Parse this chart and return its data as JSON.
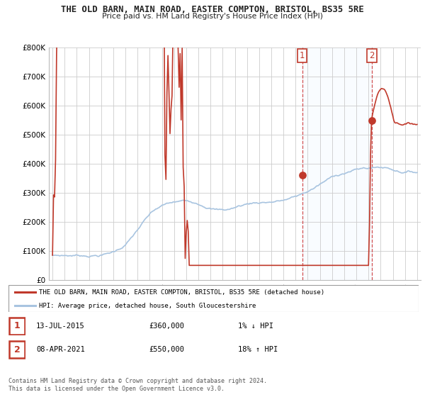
{
  "title": "THE OLD BARN, MAIN ROAD, EASTER COMPTON, BRISTOL, BS35 5RE",
  "subtitle": "Price paid vs. HM Land Registry's House Price Index (HPI)",
  "ylim": [
    0,
    800000
  ],
  "yticks": [
    0,
    100000,
    200000,
    300000,
    400000,
    500000,
    600000,
    700000,
    800000
  ],
  "ytick_labels": [
    "£0",
    "£100K",
    "£200K",
    "£300K",
    "£400K",
    "£500K",
    "£600K",
    "£700K",
    "£800K"
  ],
  "hpi_color": "#a8c4e0",
  "property_color": "#c0392b",
  "shading_color": "#ddeeff",
  "transaction1_date": 2015.54,
  "transaction1_value": 360000,
  "transaction2_date": 2021.27,
  "transaction2_value": 550000,
  "legend_property": "THE OLD BARN, MAIN ROAD, EASTER COMPTON, BRISTOL, BS35 5RE (detached house)",
  "legend_hpi": "HPI: Average price, detached house, South Gloucestershire",
  "footer": "Contains HM Land Registry data © Crown copyright and database right 2024.\nThis data is licensed under the Open Government Licence v3.0.",
  "background_color": "#ffffff",
  "grid_color": "#cccccc",
  "start_year": 1995,
  "end_year": 2025
}
